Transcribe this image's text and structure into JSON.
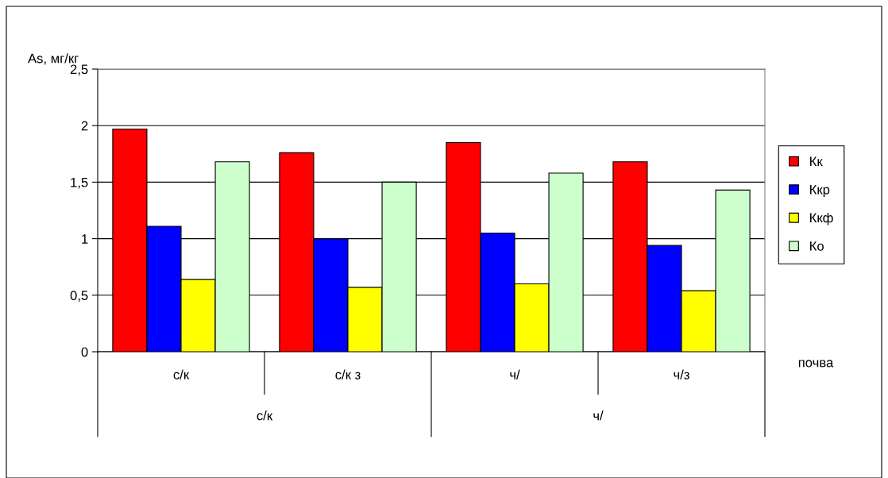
{
  "chart_data": {
    "type": "bar",
    "ylabel": "As, мг/кг",
    "xlabel": "почва",
    "categories": [
      "с/к",
      "с/к з",
      "ч/",
      "ч/з"
    ],
    "annotations": [
      "с/к",
      "ч/"
    ],
    "series": [
      {
        "name": "Кк",
        "color": "#ff0000",
        "values": [
          1.97,
          1.76,
          1.85,
          1.68
        ]
      },
      {
        "name": "Ккр",
        "color": "#0000ff",
        "values": [
          1.11,
          1.0,
          1.05,
          0.94
        ]
      },
      {
        "name": "Ккф",
        "color": "#ffff00",
        "values": [
          0.64,
          0.57,
          0.6,
          0.54
        ]
      },
      {
        "name": "Ко",
        "color": "#ccffcc",
        "values": [
          1.68,
          1.5,
          1.58,
          1.43
        ]
      }
    ],
    "ylim": [
      0,
      2.5
    ],
    "yticks": [
      {
        "value": 0,
        "label": "0"
      },
      {
        "value": 0.5,
        "label": "0,5"
      },
      {
        "value": 1,
        "label": "1"
      },
      {
        "value": 1.5,
        "label": "1,5"
      },
      {
        "value": 2,
        "label": "2"
      },
      {
        "value": 2.5,
        "label": "2,5"
      }
    ],
    "grid": "y",
    "legend": "right"
  }
}
